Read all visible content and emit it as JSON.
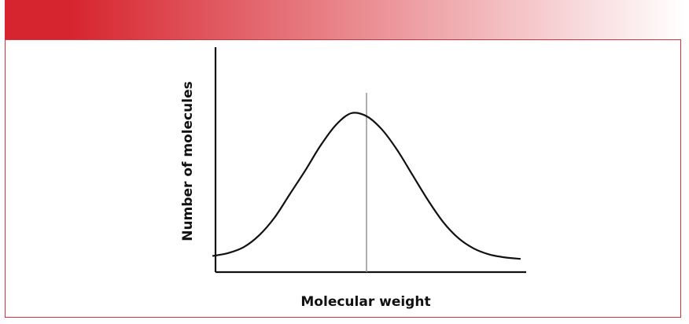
{
  "colors": {
    "header_start": "#d7252f",
    "header_end": "#ffffff",
    "frame_border": "#d9303a",
    "curve": "#111111",
    "center_line": "#8c8c8c",
    "axis": "#111111"
  },
  "chart_data": {
    "type": "line",
    "xlabel": "Molecular weight",
    "ylabel": "Number of molecules",
    "xlim": [
      0,
      1
    ],
    "ylim": [
      0,
      1
    ],
    "grid": false,
    "legend": "none",
    "tick_labels": false,
    "series": [
      {
        "x": [
          0.0,
          0.05,
          0.1,
          0.15,
          0.2,
          0.25,
          0.3,
          0.35,
          0.4,
          0.45,
          0.5,
          0.55,
          0.6,
          0.65,
          0.7,
          0.75,
          0.8,
          0.85,
          0.9,
          0.95,
          1.0
        ],
        "values": [
          0.03,
          0.05,
          0.09,
          0.17,
          0.29,
          0.45,
          0.61,
          0.78,
          0.92,
          1.0,
          0.98,
          0.89,
          0.75,
          0.58,
          0.41,
          0.26,
          0.15,
          0.08,
          0.04,
          0.02,
          0.01
        ]
      }
    ],
    "annotations": [
      {
        "type": "vertical-line",
        "x": 0.5
      }
    ]
  }
}
